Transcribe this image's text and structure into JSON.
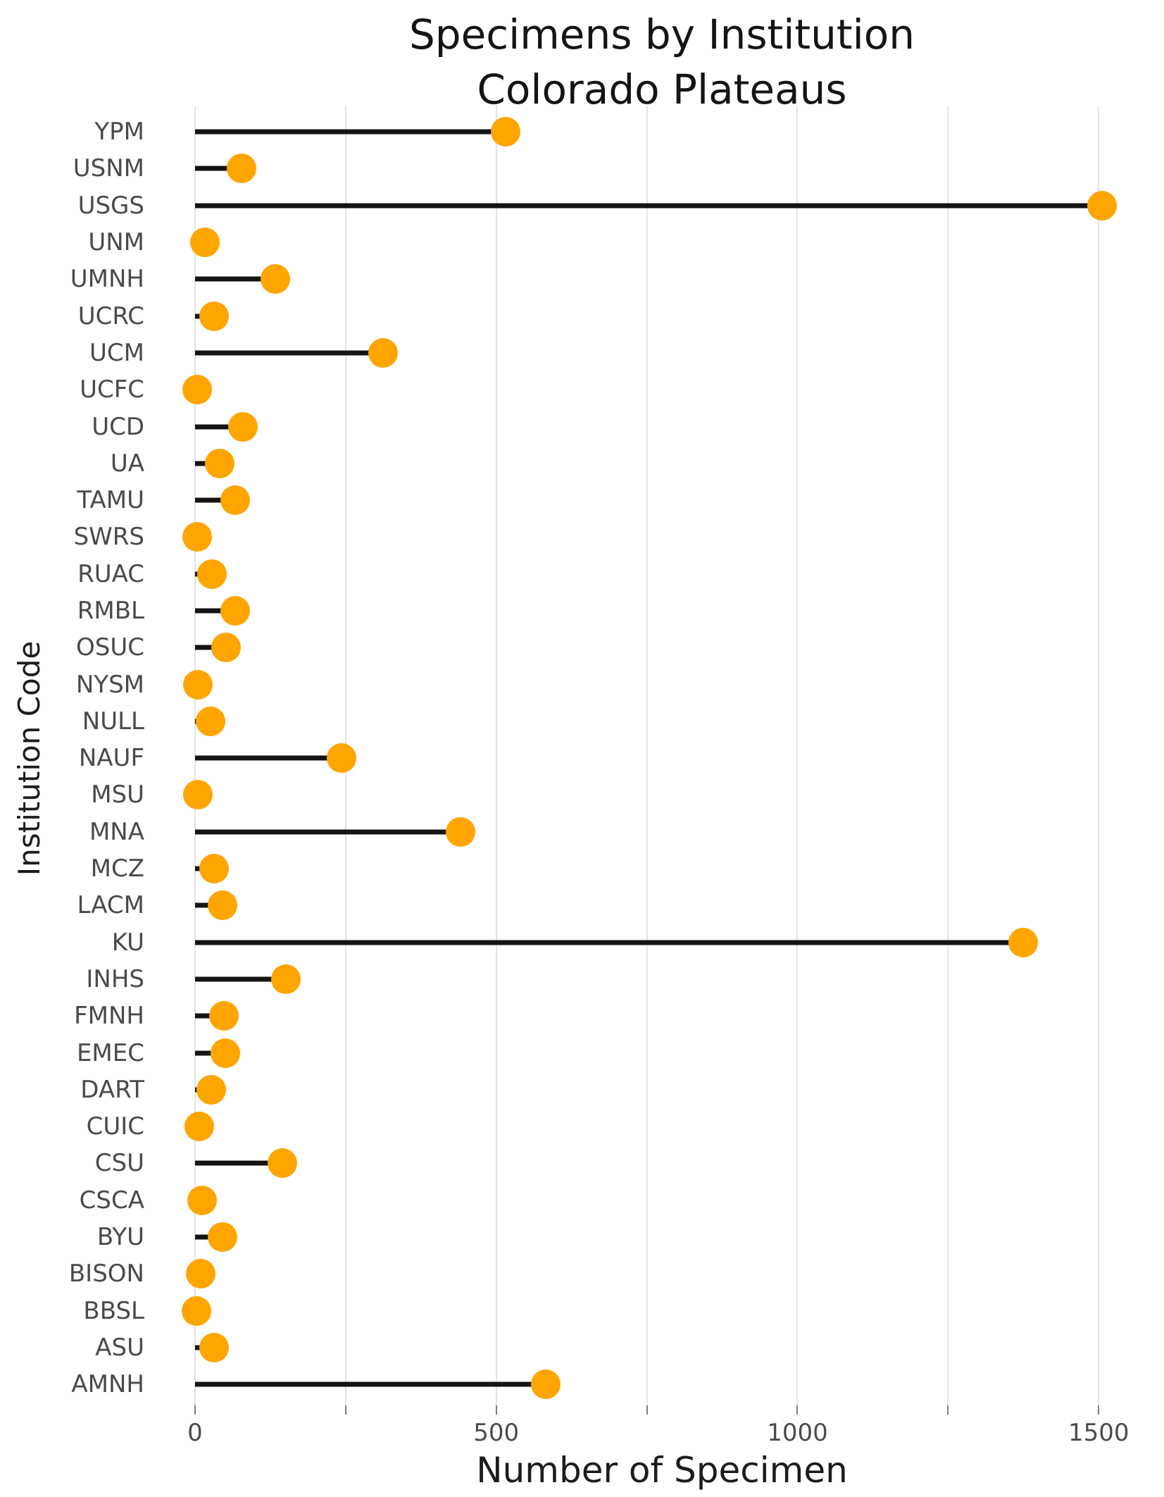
{
  "title": {
    "line1": "Specimens by Institution",
    "line2": "Colorado Plateaus"
  },
  "axes": {
    "x_label": "Number of Specimen",
    "y_label": "Institution Code",
    "x_min": 0,
    "x_max": 1550,
    "x_gridlines": [
      0,
      250,
      500,
      750,
      1000,
      1250,
      1500
    ],
    "x_tick_labels": [
      {
        "value": 0,
        "label": "0"
      },
      {
        "value": 500,
        "label": "500"
      },
      {
        "value": 1000,
        "label": "1000"
      },
      {
        "value": 1500,
        "label": "1500"
      }
    ]
  },
  "colors": {
    "dot": "#FFA500",
    "stem": "#141414",
    "gridline": "#e4e4e4",
    "tick": "#7f7f7f",
    "tick_label": "#4a4a4a",
    "axis_title": "#1c1c1c",
    "title": "#141414",
    "background": "#ffffff"
  },
  "chart_data": {
    "type": "bar",
    "subtype": "lollipop",
    "orientation": "horizontal",
    "title": "Specimens by Institution — Colorado Plateaus",
    "xlabel": "Number of Specimen",
    "ylabel": "Institution Code",
    "xlim": [
      0,
      1550
    ],
    "grid": "vertical-gridlines-only",
    "legend": "none",
    "categories": [
      "YPM",
      "USNM",
      "USGS",
      "UNM",
      "UMNH",
      "UCRC",
      "UCM",
      "UCFC",
      "UCD",
      "UA",
      "TAMU",
      "SWRS",
      "RUAC",
      "RMBL",
      "OSUC",
      "NYSM",
      "NULL",
      "NAUF",
      "MSU",
      "MNA",
      "MCZ",
      "LACM",
      "KU",
      "INHS",
      "FMNH",
      "EMEC",
      "DART",
      "CUIC",
      "CSU",
      "CSCA",
      "BYU",
      "BISON",
      "BBSL",
      "ASU",
      "AMNH"
    ],
    "values": [
      515,
      77,
      1505,
      16,
      133,
      32,
      312,
      3,
      80,
      41,
      67,
      3,
      28,
      67,
      52,
      5,
      26,
      243,
      5,
      441,
      32,
      46,
      1375,
      151,
      48,
      50,
      27,
      7,
      145,
      12,
      46,
      9,
      2,
      31,
      582
    ]
  }
}
